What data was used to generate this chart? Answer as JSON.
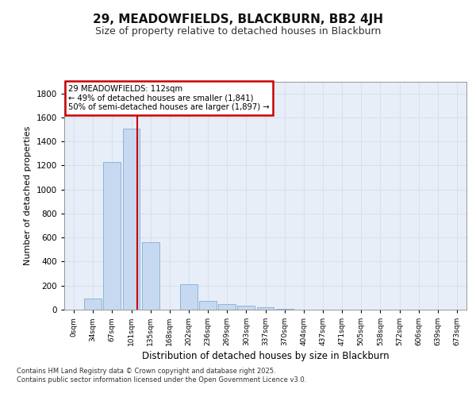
{
  "title1": "29, MEADOWFIELDS, BLACKBURN, BB2 4JH",
  "title2": "Size of property relative to detached houses in Blackburn",
  "xlabel": "Distribution of detached houses by size in Blackburn",
  "ylabel": "Number of detached properties",
  "bin_labels": [
    "0sqm",
    "34sqm",
    "67sqm",
    "101sqm",
    "135sqm",
    "168sqm",
    "202sqm",
    "236sqm",
    "269sqm",
    "303sqm",
    "337sqm",
    "370sqm",
    "404sqm",
    "437sqm",
    "471sqm",
    "505sqm",
    "538sqm",
    "572sqm",
    "606sqm",
    "639sqm",
    "673sqm"
  ],
  "bar_values": [
    0,
    90,
    1230,
    1510,
    560,
    0,
    210,
    70,
    45,
    30,
    20,
    5,
    2,
    0,
    0,
    0,
    0,
    0,
    0,
    0,
    0
  ],
  "bar_color": "#c6d9f0",
  "bar_edge_color": "#7fafd4",
  "property_sqm": 112,
  "property_bin_idx": 3,
  "annotation_line1": "29 MEADOWFIELDS: 112sqm",
  "annotation_line2": "← 49% of detached houses are smaller (1,841)",
  "annotation_line3": "50% of semi-detached houses are larger (1,897) →",
  "annotation_box_color": "#ffffff",
  "annotation_box_edge": "#cc0000",
  "vline_color": "#cc0000",
  "ylim": [
    0,
    1900
  ],
  "yticks": [
    0,
    200,
    400,
    600,
    800,
    1000,
    1200,
    1400,
    1600,
    1800
  ],
  "grid_color": "#d4dded",
  "background_color": "#e8eef8",
  "fig_background": "#ffffff",
  "footer1": "Contains HM Land Registry data © Crown copyright and database right 2025.",
  "footer2": "Contains public sector information licensed under the Open Government Licence v3.0."
}
